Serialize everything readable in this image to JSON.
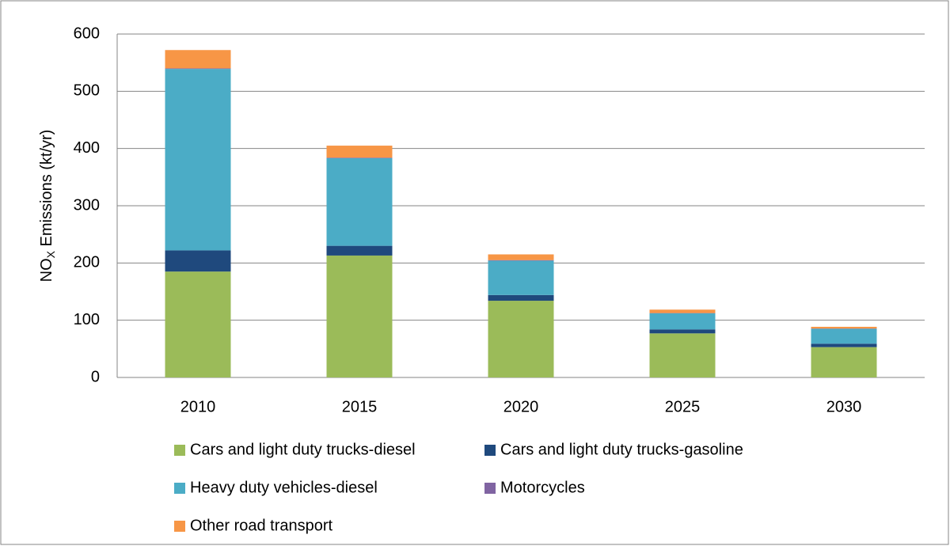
{
  "chart_data": {
    "type": "stacked_bar",
    "y_label": [
      "NO",
      "X",
      " Emissions (kt/yr)"
    ],
    "categories": [
      "2010",
      "2015",
      "2020",
      "2025",
      "2030"
    ],
    "series": [
      {
        "name": "Cars and light duty trucks-diesel",
        "color": "#9bbb59",
        "values": [
          185,
          213,
          134,
          77,
          53
        ]
      },
      {
        "name": "Cars and light duty trucks-gasoline",
        "color": "#1f497d",
        "values": [
          37,
          17,
          10,
          7,
          6
        ]
      },
      {
        "name": "Heavy duty vehicles-diesel",
        "color": "#4bacc6",
        "values": [
          317,
          153,
          60,
          28,
          26
        ]
      },
      {
        "name": "Motorcycles",
        "color": "#8064a2",
        "values": [
          1,
          1,
          1,
          0.5,
          0.5
        ]
      },
      {
        "name": "Other road transport",
        "color": "#f79646",
        "values": [
          32,
          21,
          10,
          6,
          3
        ]
      }
    ],
    "ylim": [
      0,
      600
    ],
    "yticks": [
      0,
      100,
      200,
      300,
      400,
      500,
      600
    ],
    "grid": true
  }
}
